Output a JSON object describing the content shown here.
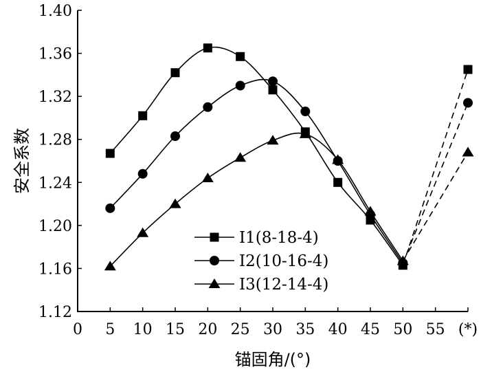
{
  "chart_data": {
    "type": "line",
    "xlabel": "锚固角/(°)",
    "ylabel": "安全系数",
    "x_ticks": [
      "0",
      "5",
      "10",
      "15",
      "20",
      "25",
      "30",
      "35",
      "40",
      "45",
      "50",
      "55",
      "(*)"
    ],
    "y_ticks": [
      "1.12",
      "1.16",
      "1.20",
      "1.24",
      "1.28",
      "1.32",
      "1.36",
      "1.40"
    ],
    "xlim": [
      0,
      60
    ],
    "ylim": [
      1.12,
      1.4
    ],
    "grid": false,
    "legend_position": "bottom-center",
    "series": [
      {
        "name": "I1(8-18-4)",
        "marker": "square",
        "x": [
          5,
          10,
          15,
          20,
          25,
          30,
          35,
          40,
          45,
          50
        ],
        "y": [
          1.267,
          1.302,
          1.342,
          1.365,
          1.357,
          1.326,
          1.287,
          1.24,
          1.205,
          1.163
        ],
        "star_value": 1.345
      },
      {
        "name": "I2(10-16-4)",
        "marker": "circle",
        "x": [
          5,
          10,
          15,
          20,
          25,
          30,
          35,
          40,
          45,
          50
        ],
        "y": [
          1.216,
          1.248,
          1.283,
          1.31,
          1.33,
          1.334,
          1.306,
          1.26,
          1.21,
          1.165
        ],
        "star_value": 1.314
      },
      {
        "name": "I3(12-14-4)",
        "marker": "triangle",
        "x": [
          5,
          10,
          15,
          20,
          25,
          30,
          35,
          40,
          45,
          50
        ],
        "y": [
          1.162,
          1.193,
          1.22,
          1.244,
          1.263,
          1.279,
          1.285,
          1.261,
          1.213,
          1.167
        ],
        "star_value": 1.268
      }
    ]
  }
}
